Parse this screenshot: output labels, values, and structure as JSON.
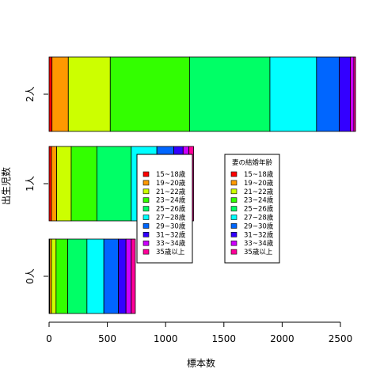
{
  "chart_data": {
    "type": "bar",
    "orientation": "horizontal",
    "stacked": true,
    "title": "",
    "xlabel": "標本数",
    "ylabel": "出生児数",
    "xlim": [
      0,
      2630
    ],
    "x_ticks": [
      0,
      500,
      1000,
      1500,
      2000,
      2500
    ],
    "categories": [
      "0人",
      "1人",
      "2人"
    ],
    "series": [
      {
        "name": "15~18歳",
        "color": "#FF0000",
        "values": [
          5,
          20,
          25
        ]
      },
      {
        "name": "19~20歳",
        "color": "#FF9900",
        "values": [
          15,
          45,
          140
        ]
      },
      {
        "name": "21~22歳",
        "color": "#CCFF00",
        "values": [
          40,
          125,
          360
        ]
      },
      {
        "name": "23~24歳",
        "color": "#33FF00",
        "values": [
          100,
          220,
          680
        ]
      },
      {
        "name": "25~26歳",
        "color": "#00FF66",
        "values": [
          165,
          295,
          690
        ]
      },
      {
        "name": "27~28歳",
        "color": "#00FFFF",
        "values": [
          145,
          220,
          400
        ]
      },
      {
        "name": "29~30歳",
        "color": "#0066FF",
        "values": [
          125,
          145,
          195
        ]
      },
      {
        "name": "31~32歳",
        "color": "#3300FF",
        "values": [
          65,
          80,
          95
        ]
      },
      {
        "name": "33~34歳",
        "color": "#CC00FF",
        "values": [
          45,
          50,
          30
        ]
      },
      {
        "name": "35歳以上",
        "color": "#FF0099",
        "values": [
          35,
          40,
          15
        ]
      }
    ],
    "legends": [
      {
        "title": "",
        "position": "center"
      },
      {
        "title": "妻の結婚年齢",
        "position": "center-right"
      }
    ],
    "grid": false
  }
}
